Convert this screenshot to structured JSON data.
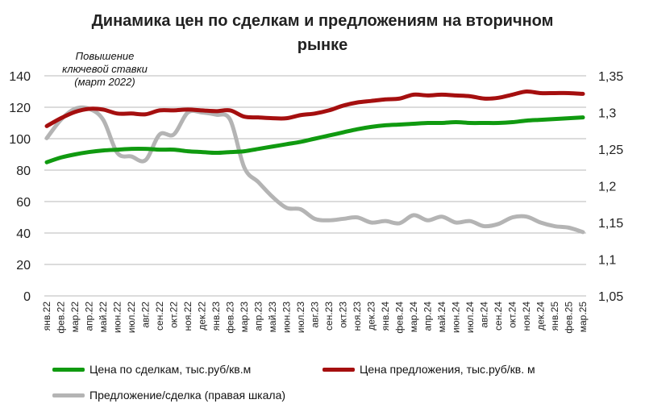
{
  "chart_data": {
    "type": "line",
    "title": "Динамика цен по сделкам и предложениям на вторичном рынке",
    "annotation": [
      "Повышение",
      "ключевой ставки",
      "(март 2022)"
    ],
    "categories": [
      "янв.22",
      "фев.22",
      "мар.22",
      "апр.22",
      "май.22",
      "июн.22",
      "июл.22",
      "авг.22",
      "сен.22",
      "окт.22",
      "ноя.22",
      "дек.22",
      "янв.23",
      "фев.23",
      "мар.23",
      "апр.23",
      "май.23",
      "июн.23",
      "июл.23",
      "авг.23",
      "сен.23",
      "окт.23",
      "ноя.23",
      "дек.23",
      "янв.24",
      "фев.24",
      "мар.24",
      "апр.24",
      "май.24",
      "июн.24",
      "июл.24",
      "авг.24",
      "сен.24",
      "окт.24",
      "ноя.24",
      "дек.24",
      "янв.25",
      "фев.25",
      "мар.25"
    ],
    "y_left": {
      "min": 0,
      "max": 140,
      "step": 20,
      "ticks": [
        "0",
        "20",
        "40",
        "60",
        "80",
        "100",
        "120",
        "140"
      ]
    },
    "y_right": {
      "min": 1.05,
      "max": 1.35,
      "step": 0.05,
      "ticks": [
        "1,05",
        "1,1",
        "1,15",
        "1,2",
        "1,25",
        "1,3",
        "1,35"
      ]
    },
    "grid": true,
    "legend_position": "bottom",
    "series": [
      {
        "name": "Цена по сделкам, тыс.руб/кв.м",
        "axis": "left",
        "color": "#109a10",
        "values": [
          85,
          88,
          90,
          91.5,
          92.5,
          93,
          93.5,
          93.5,
          93,
          93,
          92,
          91.5,
          91,
          91.5,
          92,
          93.5,
          95,
          96.5,
          98,
          100,
          102,
          104,
          106,
          107.5,
          108.5,
          109,
          109.5,
          110,
          110,
          110.5,
          110,
          110,
          110,
          110.5,
          111.5,
          112,
          112.5,
          113,
          113.5
        ]
      },
      {
        "name": "Цена предложения, тыс.руб/кв. м",
        "axis": "left",
        "color": "#a50f0f",
        "values": [
          108,
          113,
          117,
          119,
          118.5,
          116,
          116,
          115.5,
          118,
          118,
          118.5,
          118,
          117.5,
          118,
          114,
          113.5,
          113,
          113,
          115,
          116,
          118,
          121,
          123,
          124,
          125,
          125.5,
          128,
          127.5,
          128,
          127.5,
          127,
          125.5,
          126,
          128,
          130,
          129,
          129,
          129,
          128.5
        ]
      },
      {
        "name": "Предложение/сделка (правая шкала)",
        "axis": "right",
        "color": "#b4b4b4",
        "values": [
          1.265,
          1.29,
          1.305,
          1.305,
          1.29,
          1.245,
          1.24,
          1.235,
          1.27,
          1.27,
          1.3,
          1.3,
          1.297,
          1.29,
          1.225,
          1.205,
          1.185,
          1.17,
          1.168,
          1.155,
          1.153,
          1.155,
          1.157,
          1.15,
          1.152,
          1.149,
          1.16,
          1.153,
          1.158,
          1.15,
          1.152,
          1.145,
          1.148,
          1.157,
          1.158,
          1.15,
          1.145,
          1.143,
          1.137
        ]
      }
    ]
  }
}
